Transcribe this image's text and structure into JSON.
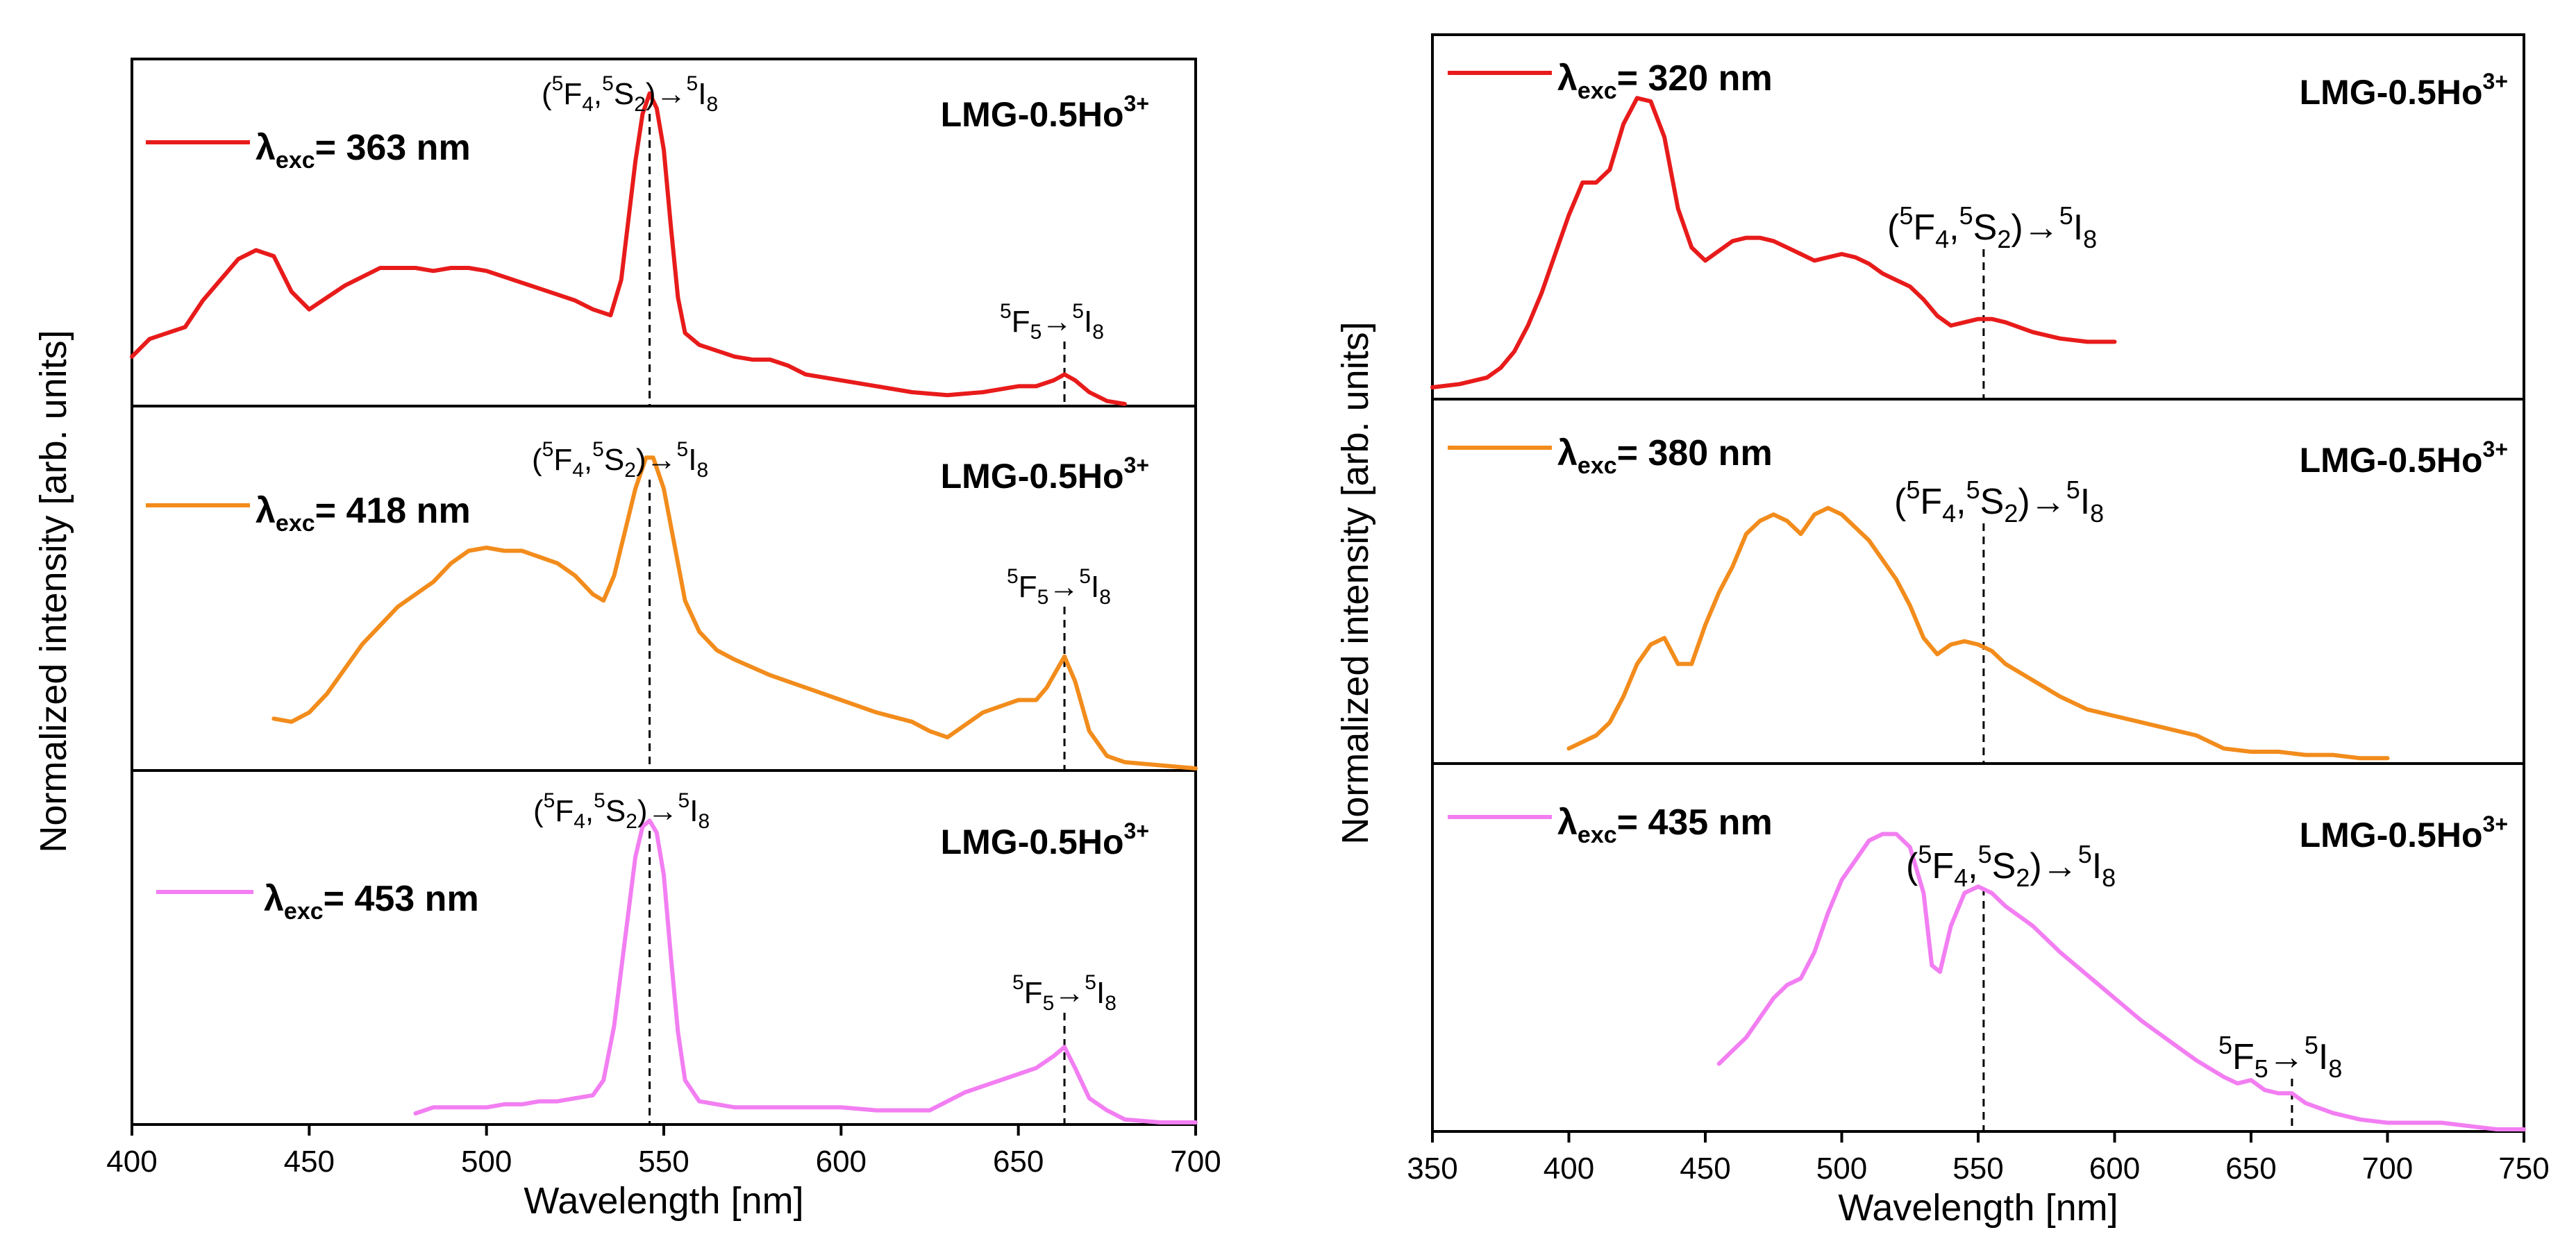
{
  "colors": {
    "red": "#e81b1b",
    "orange": "#f28c1c",
    "pink": "#f27ef2"
  },
  "chart_data": [
    {
      "type": "line",
      "panel": "left",
      "ylabel": "Normalized intensity [arb. units]",
      "xlabel": "Wavelength [nm]",
      "xlim": [
        400,
        700
      ],
      "xticks": [
        400,
        450,
        500,
        550,
        600,
        650,
        700
      ],
      "xtick_labels": [
        "400",
        "450",
        "500",
        "550",
        "600",
        "650",
        "700"
      ],
      "markers": [
        546,
        663
      ],
      "subplots": [
        {
          "legend": {
            "symbol": "λ",
            "sub": "exc",
            "text": "= 363 nm"
          },
          "sample": {
            "base": "LMG-0.5Ho",
            "sup": "3+"
          },
          "transition_a": {
            "t1": "(",
            "s1": "5",
            "t2": "F",
            "b1": "4",
            "t3": ",",
            "s2": "5",
            "t4": "S",
            "b2": "2",
            "t5": ")→",
            "s3": "5",
            "t6": "I",
            "b3": "8"
          },
          "transition_b": {
            "s1": "5",
            "t1": "F",
            "b1": "5",
            "t2": "→",
            "s2": "5",
            "t3": "I",
            "b2": "8"
          },
          "color": "#e81b1b",
          "ylim": [
            0,
            1.15
          ],
          "x": [
            400,
            405,
            410,
            415,
            420,
            425,
            430,
            435,
            440,
            445,
            450,
            455,
            460,
            465,
            470,
            475,
            480,
            485,
            490,
            495,
            500,
            505,
            510,
            515,
            520,
            525,
            530,
            535,
            538,
            540,
            542,
            544,
            546,
            548,
            550,
            552,
            554,
            556,
            560,
            565,
            570,
            575,
            580,
            585,
            590,
            600,
            610,
            620,
            630,
            640,
            650,
            655,
            660,
            663,
            666,
            670,
            675,
            680
          ],
          "values": [
            0.16,
            0.22,
            0.24,
            0.26,
            0.35,
            0.42,
            0.49,
            0.52,
            0.5,
            0.38,
            0.32,
            0.36,
            0.4,
            0.43,
            0.46,
            0.46,
            0.46,
            0.45,
            0.46,
            0.46,
            0.45,
            0.43,
            0.41,
            0.39,
            0.37,
            0.35,
            0.32,
            0.3,
            0.42,
            0.62,
            0.82,
            0.98,
            1.05,
            1.0,
            0.86,
            0.6,
            0.36,
            0.24,
            0.2,
            0.18,
            0.16,
            0.15,
            0.15,
            0.13,
            0.1,
            0.08,
            0.06,
            0.04,
            0.03,
            0.04,
            0.06,
            0.06,
            0.08,
            0.1,
            0.08,
            0.04,
            0.01,
            0.0
          ]
        },
        {
          "legend": {
            "symbol": "λ",
            "sub": "exc",
            "text": "= 418 nm"
          },
          "sample": {
            "base": "LMG-0.5Ho",
            "sup": "3+"
          },
          "transition_a": {
            "t1": "(",
            "s1": "5",
            "t2": "F",
            "b1": "4",
            "t3": ",",
            "s2": "5",
            "t4": "S",
            "b2": "2",
            "t5": ")→",
            "s3": "5",
            "t6": "I",
            "b3": "8"
          },
          "transition_b": {
            "s1": "5",
            "t1": "F",
            "b1": "5",
            "t2": "→",
            "s2": "5",
            "t3": "I",
            "b2": "8"
          },
          "color": "#f28c1c",
          "ylim": [
            0,
            1.15
          ],
          "x": [
            440,
            445,
            450,
            455,
            460,
            465,
            470,
            475,
            480,
            485,
            490,
            495,
            500,
            505,
            510,
            515,
            520,
            525,
            530,
            533,
            536,
            539,
            542,
            545,
            547,
            550,
            553,
            556,
            560,
            565,
            570,
            580,
            590,
            600,
            610,
            620,
            625,
            630,
            635,
            640,
            645,
            650,
            655,
            658,
            660,
            663,
            666,
            670,
            675,
            680,
            690,
            700
          ],
          "values": [
            0.16,
            0.15,
            0.18,
            0.24,
            0.32,
            0.4,
            0.46,
            0.52,
            0.56,
            0.6,
            0.66,
            0.7,
            0.71,
            0.7,
            0.7,
            0.68,
            0.66,
            0.62,
            0.56,
            0.54,
            0.62,
            0.76,
            0.9,
            1.0,
            1.0,
            0.9,
            0.72,
            0.54,
            0.44,
            0.38,
            0.35,
            0.3,
            0.26,
            0.22,
            0.18,
            0.15,
            0.12,
            0.1,
            0.14,
            0.18,
            0.2,
            0.22,
            0.22,
            0.26,
            0.3,
            0.36,
            0.28,
            0.12,
            0.04,
            0.02,
            0.01,
            0.0
          ]
        },
        {
          "legend": {
            "symbol": "λ",
            "sub": "exc",
            "text": "= 453 nm"
          },
          "sample": {
            "base": "LMG-0.5Ho",
            "sup": "3+"
          },
          "transition_a": {
            "t1": "(",
            "s1": "5",
            "t2": "F",
            "b1": "4",
            "t3": ",",
            "s2": "5",
            "t4": "S",
            "b2": "2",
            "t5": ")→",
            "s3": "5",
            "t6": "I",
            "b3": "8"
          },
          "transition_b": {
            "s1": "5",
            "t1": "F",
            "b1": "5",
            "t2": "→",
            "s2": "5",
            "t3": "I",
            "b2": "8"
          },
          "color": "#f27ef2",
          "ylim": [
            0,
            1.15
          ],
          "x": [
            480,
            485,
            490,
            495,
            500,
            505,
            510,
            515,
            520,
            525,
            530,
            533,
            536,
            539,
            542,
            544,
            546,
            548,
            550,
            552,
            554,
            556,
            560,
            565,
            570,
            580,
            590,
            600,
            610,
            620,
            625,
            630,
            635,
            640,
            645,
            650,
            655,
            660,
            663,
            666,
            670,
            675,
            680,
            690,
            700
          ],
          "values": [
            0.03,
            0.05,
            0.05,
            0.05,
            0.05,
            0.06,
            0.06,
            0.07,
            0.07,
            0.08,
            0.09,
            0.14,
            0.32,
            0.6,
            0.88,
            0.98,
            1.0,
            0.96,
            0.82,
            0.55,
            0.3,
            0.14,
            0.07,
            0.06,
            0.05,
            0.05,
            0.05,
            0.05,
            0.04,
            0.04,
            0.04,
            0.07,
            0.1,
            0.12,
            0.14,
            0.16,
            0.18,
            0.22,
            0.25,
            0.18,
            0.08,
            0.04,
            0.01,
            0.0,
            0.0
          ]
        }
      ]
    },
    {
      "type": "line",
      "panel": "right",
      "ylabel": "Normalized intensity [arb. units]",
      "xlabel": "Wavelength [nm]",
      "xlim": [
        350,
        750
      ],
      "xticks": [
        350,
        400,
        450,
        500,
        550,
        600,
        650,
        700,
        750
      ],
      "xtick_labels": [
        "350",
        "400",
        "450",
        "500",
        "550",
        "600",
        "650",
        "700",
        "750"
      ],
      "markers": [
        552,
        665
      ],
      "subplots": [
        {
          "legend": {
            "symbol": "λ",
            "sub": "exc",
            "text": "= 320 nm"
          },
          "sample": {
            "base": "LMG-0.5Ho",
            "sup": "3+"
          },
          "transition_a": {
            "t1": "(",
            "s1": "5",
            "t2": "F",
            "b1": "4",
            "t3": ",",
            "s2": "5",
            "t4": "S",
            "b2": "2",
            "t5": ")→",
            "s3": "5",
            "t6": "I",
            "b3": "8"
          },
          "color": "#e81b1b",
          "ylim": [
            0,
            1.1
          ],
          "x": [
            350,
            360,
            370,
            375,
            380,
            385,
            390,
            395,
            400,
            405,
            410,
            415,
            420,
            425,
            430,
            435,
            440,
            445,
            450,
            455,
            460,
            465,
            470,
            475,
            480,
            485,
            490,
            495,
            500,
            505,
            510,
            515,
            520,
            525,
            530,
            535,
            540,
            545,
            550,
            555,
            560,
            570,
            580,
            590,
            600
          ],
          "values": [
            0.03,
            0.04,
            0.06,
            0.09,
            0.14,
            0.22,
            0.32,
            0.44,
            0.56,
            0.66,
            0.66,
            0.7,
            0.84,
            0.92,
            0.91,
            0.8,
            0.58,
            0.46,
            0.42,
            0.45,
            0.48,
            0.49,
            0.49,
            0.48,
            0.46,
            0.44,
            0.42,
            0.43,
            0.44,
            0.43,
            0.41,
            0.38,
            0.36,
            0.34,
            0.3,
            0.25,
            0.22,
            0.23,
            0.24,
            0.24,
            0.23,
            0.2,
            0.18,
            0.17,
            0.17
          ]
        },
        {
          "legend": {
            "symbol": "λ",
            "sub": "exc",
            "text": "= 380 nm"
          },
          "sample": {
            "base": "LMG-0.5Ho",
            "sup": "3+"
          },
          "transition_a": {
            "t1": "(",
            "s1": "5",
            "t2": "F",
            "b1": "4",
            "t3": ",",
            "s2": "5",
            "t4": "S",
            "b2": "2",
            "t5": ")→",
            "s3": "5",
            "t6": "I",
            "b3": "8"
          },
          "color": "#f28c1c",
          "ylim": [
            0,
            1.1
          ],
          "x": [
            400,
            410,
            415,
            420,
            425,
            430,
            435,
            440,
            445,
            450,
            455,
            460,
            465,
            470,
            475,
            480,
            485,
            490,
            495,
            500,
            505,
            510,
            515,
            520,
            525,
            530,
            535,
            540,
            545,
            550,
            555,
            560,
            570,
            580,
            590,
            600,
            610,
            620,
            630,
            640,
            650,
            660,
            670,
            680,
            690,
            700
          ],
          "values": [
            0.04,
            0.08,
            0.12,
            0.2,
            0.3,
            0.36,
            0.38,
            0.3,
            0.3,
            0.42,
            0.52,
            0.6,
            0.7,
            0.74,
            0.76,
            0.74,
            0.7,
            0.76,
            0.78,
            0.76,
            0.72,
            0.68,
            0.62,
            0.56,
            0.48,
            0.38,
            0.33,
            0.36,
            0.37,
            0.36,
            0.34,
            0.3,
            0.25,
            0.2,
            0.16,
            0.14,
            0.12,
            0.1,
            0.08,
            0.04,
            0.03,
            0.03,
            0.02,
            0.02,
            0.01,
            0.01
          ]
        },
        {
          "legend": {
            "symbol": "λ",
            "sub": "exc",
            "text": "= 435 nm"
          },
          "sample": {
            "base": "LMG-0.5Ho",
            "sup": "3+"
          },
          "transition_a": {
            "t1": "(",
            "s1": "5",
            "t2": "F",
            "b1": "4",
            "t3": ",",
            "s2": "5",
            "t4": "S",
            "b2": "2",
            "t5": ")→",
            "s3": "5",
            "t6": "I",
            "b3": "8"
          },
          "transition_b": {
            "s1": "5",
            "t1": "F",
            "b1": "5",
            "t2": "→",
            "s2": "5",
            "t3": "I",
            "b2": "8"
          },
          "color": "#f27ef2",
          "ylim": [
            0,
            1.1
          ],
          "x": [
            455,
            460,
            465,
            470,
            475,
            480,
            485,
            490,
            495,
            500,
            505,
            510,
            515,
            520,
            525,
            530,
            533,
            536,
            540,
            545,
            550,
            555,
            560,
            570,
            580,
            590,
            600,
            610,
            620,
            630,
            640,
            645,
            650,
            655,
            660,
            665,
            670,
            680,
            690,
            700,
            710,
            720,
            730,
            740,
            750
          ],
          "values": [
            0.2,
            0.24,
            0.28,
            0.34,
            0.4,
            0.44,
            0.46,
            0.54,
            0.66,
            0.76,
            0.82,
            0.88,
            0.9,
            0.9,
            0.86,
            0.72,
            0.5,
            0.48,
            0.62,
            0.72,
            0.74,
            0.72,
            0.68,
            0.62,
            0.54,
            0.47,
            0.4,
            0.33,
            0.27,
            0.21,
            0.16,
            0.14,
            0.15,
            0.12,
            0.11,
            0.11,
            0.08,
            0.05,
            0.03,
            0.02,
            0.02,
            0.02,
            0.01,
            0.0,
            0.0
          ]
        }
      ]
    }
  ]
}
